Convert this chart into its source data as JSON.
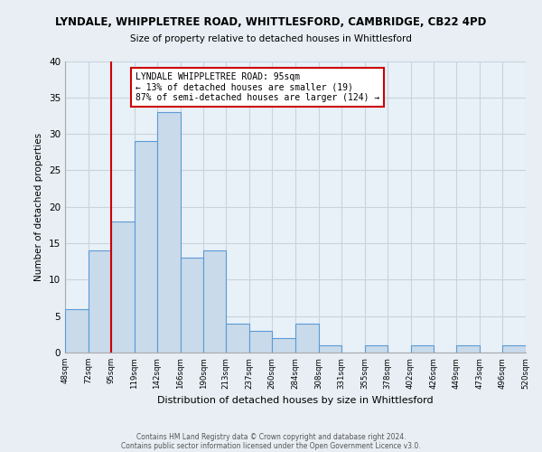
{
  "title": "LYNDALE, WHIPPLETREE ROAD, WHITTLESFORD, CAMBRIDGE, CB22 4PD",
  "subtitle": "Size of property relative to detached houses in Whittlesford",
  "xlabel": "Distribution of detached houses by size in Whittlesford",
  "ylabel": "Number of detached properties",
  "bins": [
    48,
    72,
    95,
    119,
    142,
    166,
    190,
    213,
    237,
    260,
    284,
    308,
    331,
    355,
    378,
    402,
    426,
    449,
    473,
    496,
    520
  ],
  "counts": [
    6,
    14,
    18,
    29,
    33,
    13,
    14,
    4,
    3,
    2,
    4,
    1,
    0,
    1,
    0,
    1,
    0,
    1,
    0,
    1
  ],
  "bar_color": "#c9daea",
  "bar_edge_color": "#5b9bd5",
  "vline_x": 95,
  "vline_color": "#cc0000",
  "ylim": [
    0,
    40
  ],
  "annotation_title": "LYNDALE WHIPPLETREE ROAD: 95sqm",
  "annotation_line2": "← 13% of detached houses are smaller (19)",
  "annotation_line3": "87% of semi-detached houses are larger (124) →",
  "annotation_box_edge": "#cc0000",
  "tick_labels": [
    "48sqm",
    "72sqm",
    "95sqm",
    "119sqm",
    "142sqm",
    "166sqm",
    "190sqm",
    "213sqm",
    "237sqm",
    "260sqm",
    "284sqm",
    "308sqm",
    "331sqm",
    "355sqm",
    "378sqm",
    "402sqm",
    "426sqm",
    "449sqm",
    "473sqm",
    "496sqm",
    "520sqm"
  ],
  "ytick_labels": [
    "0",
    "5",
    "10",
    "15",
    "20",
    "25",
    "30",
    "35",
    "40"
  ],
  "ytick_vals": [
    0,
    5,
    10,
    15,
    20,
    25,
    30,
    35,
    40
  ],
  "footnote1": "Contains HM Land Registry data © Crown copyright and database right 2024.",
  "footnote2": "Contains public sector information licensed under the Open Government Licence v3.0.",
  "bg_color": "#e8eef4",
  "plot_bg_color": "#e8f0f8",
  "grid_color": "#c8d4dc"
}
